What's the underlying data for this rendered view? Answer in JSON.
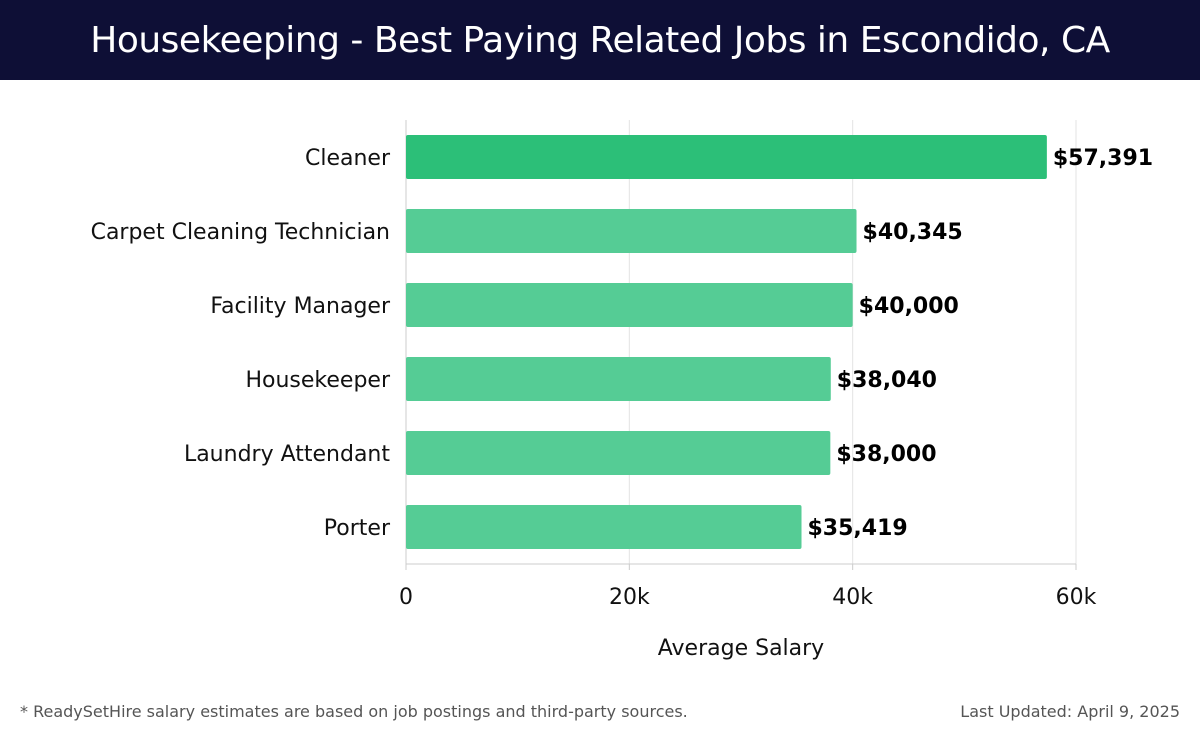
{
  "header": {
    "title": "Housekeeping - Best Paying Related Jobs in Escondido, CA"
  },
  "chart_data": {
    "type": "bar",
    "orientation": "horizontal",
    "categories": [
      "Cleaner",
      "Carpet Cleaning Technician",
      "Facility Manager",
      "Housekeeper",
      "Laundry Attendant",
      "Porter"
    ],
    "values": [
      57391,
      40345,
      40000,
      38040,
      38000,
      35419
    ],
    "value_labels": [
      "$57,391",
      "$40,345",
      "$40,000",
      "$38,040",
      "$38,000",
      "$35,419"
    ],
    "xlabel": "Average Salary",
    "xlim": [
      0,
      60000
    ],
    "xticks": [
      0,
      20000,
      40000,
      60000
    ],
    "xtick_labels": [
      "0",
      "20k",
      "40k",
      "60k"
    ],
    "grid": true,
    "colors": {
      "highlight": "#2cbf78",
      "bar": "#55cc95",
      "grid": "#e3e3e3",
      "axis": "#cccccc",
      "text": "#111111"
    }
  },
  "footer": {
    "note": "* ReadySetHire salary estimates are based on job postings and third-party sources.",
    "updated": "Last Updated: April 9, 2025"
  }
}
